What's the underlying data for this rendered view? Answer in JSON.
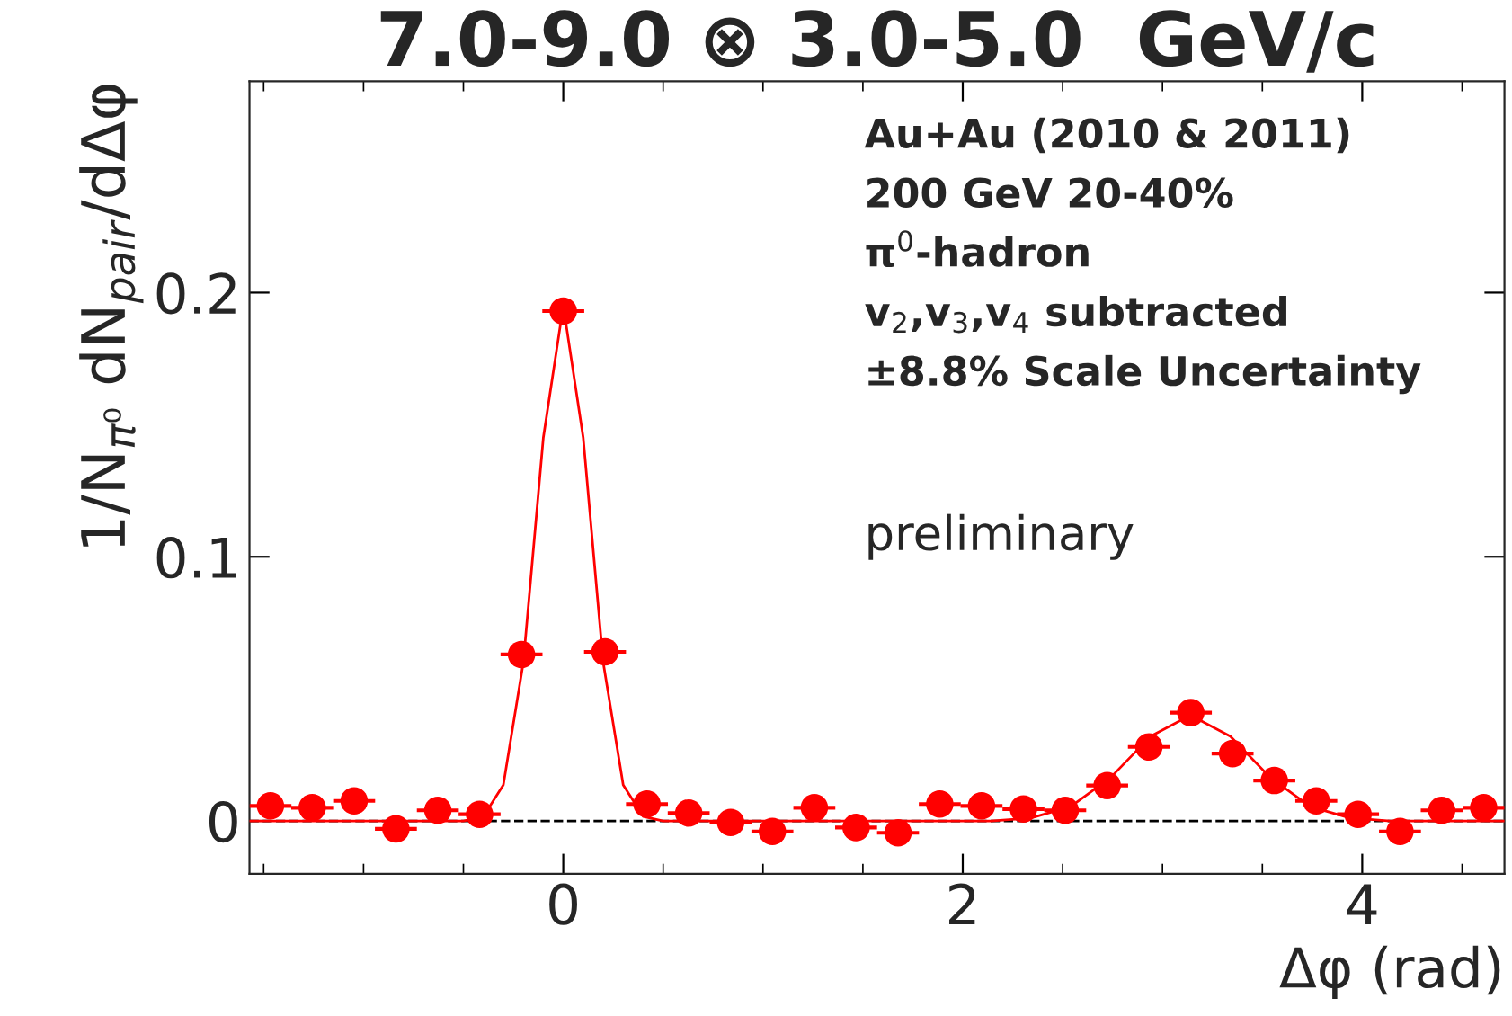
{
  "chart_data": {
    "type": "scatter",
    "title": "7.0-9.0 ⊗ 3.0-5.0  GeV/c",
    "xlabel": "Δφ (rad)",
    "ylabel": "1/N$_{π⁰}$ dN$_{pair}$/dΔφ",
    "series": [
      {
        "color": "#ff0000",
        "marker": "circle",
        "x": [
          -1.466,
          -1.257,
          -1.047,
          -0.838,
          -0.628,
          -0.419,
          -0.209,
          0.0,
          0.209,
          0.419,
          0.628,
          0.838,
          1.047,
          1.257,
          1.466,
          1.676,
          1.885,
          2.094,
          2.304,
          2.513,
          2.723,
          2.932,
          3.142,
          3.351,
          3.56,
          3.77,
          3.979,
          4.189,
          4.398,
          4.608
        ],
        "values": [
          0.0057,
          0.005,
          0.0076,
          -0.003,
          0.004,
          0.0025,
          0.063,
          0.193,
          0.064,
          0.0064,
          0.003,
          -0.0006,
          -0.004,
          0.005,
          -0.0025,
          -0.0045,
          0.0064,
          0.0057,
          0.0045,
          0.004,
          0.0134,
          0.028,
          0.041,
          0.0255,
          0.0153,
          0.0076,
          0.0025,
          -0.004,
          0.004,
          0.005
        ],
        "xerrors": [
          0.105,
          0.105,
          0.105,
          0.105,
          0.105,
          0.105,
          0.105,
          0.105,
          0.105,
          0.105,
          0.105,
          0.105,
          0.105,
          0.105,
          0.105,
          0.105,
          0.105,
          0.105,
          0.105,
          0.105,
          0.105,
          0.105,
          0.105,
          0.105,
          0.105,
          0.105,
          0.105,
          0.105,
          0.105,
          0.105
        ]
      },
      {
        "type": "line",
        "color": "#ff0000",
        "line_style": "solid",
        "x": [
          -1.571,
          -0.6,
          -0.5,
          -0.4,
          -0.3,
          -0.2,
          -0.1,
          0.0,
          0.1,
          0.2,
          0.3,
          0.4,
          0.5,
          2.14,
          2.34,
          2.54,
          2.74,
          2.94,
          3.14,
          3.34,
          3.54,
          3.74,
          3.94,
          4.14,
          4.712
        ],
        "values": [
          0.0,
          0.0,
          0.0,
          0.0017,
          0.0136,
          0.06,
          0.145,
          0.195,
          0.145,
          0.06,
          0.0136,
          0.0017,
          0.0,
          0.0,
          0.0011,
          0.0054,
          0.0164,
          0.032,
          0.04,
          0.032,
          0.0164,
          0.0054,
          0.0011,
          0.0,
          0.0
        ]
      }
    ],
    "ref_lines": [
      {
        "axis": "y",
        "value": 0,
        "color": "#000000",
        "line_style": "dashed"
      }
    ],
    "xlim": [
      -1.571,
      4.712
    ],
    "ylim": [
      -0.02,
      0.28
    ],
    "xticks": [
      0,
      2,
      4
    ],
    "yticks": [
      0,
      0.1,
      0.2
    ],
    "grid": false,
    "legend": false,
    "annotations": [
      "Au+Au (2010 & 2011)",
      "200 GeV 20-40%",
      "π$^{0}$-hadron",
      "v$_{2}$,v$_{3}$,v$_{4}$ subtracted",
      "±8.8% Scale Uncertainty",
      "preliminary"
    ]
  }
}
